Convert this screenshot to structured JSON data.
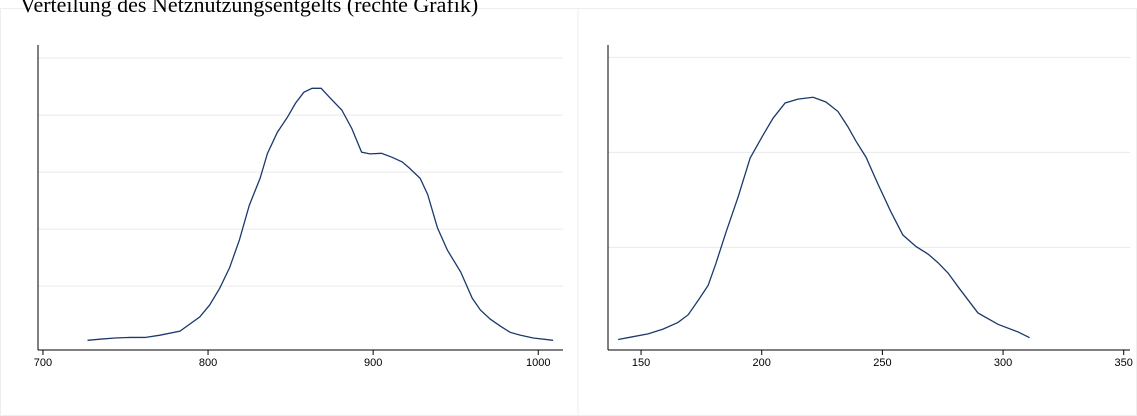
{
  "title": "Verteilung des Netznutzungsentgelts (rechte Grafik)",
  "chart_data": [
    {
      "type": "line",
      "color": "#1a3a6b",
      "grid": true,
      "xlim": [
        697,
        1015
      ],
      "xticks": [
        700,
        800,
        900,
        1000
      ],
      "ylim": [
        -0.12,
        5.23
      ],
      "yticks": [
        1,
        2,
        3,
        4,
        5
      ],
      "x": [
        727,
        734.5,
        743.6,
        752.7,
        761.8,
        770.9,
        783,
        795,
        801,
        807,
        813,
        819,
        825,
        831.5,
        836,
        842,
        848,
        853,
        858,
        863,
        868.5,
        874,
        881,
        887,
        893,
        898,
        905,
        911.5,
        917.6,
        922,
        928.5,
        933,
        939,
        945,
        953,
        960,
        965,
        971,
        977,
        983,
        989,
        997,
        1009
      ],
      "series": [
        {
          "values": [
            0.05,
            0.07,
            0.09,
            0.1,
            0.1,
            0.14,
            0.21,
            0.46,
            0.67,
            0.96,
            1.32,
            1.81,
            2.42,
            2.89,
            3.33,
            3.7,
            3.96,
            4.21,
            4.4,
            4.47,
            4.47,
            4.3,
            4.09,
            3.77,
            3.35,
            3.32,
            3.33,
            3.26,
            3.18,
            3.07,
            2.89,
            2.61,
            2.02,
            1.63,
            1.25,
            0.79,
            0.58,
            0.42,
            0.3,
            0.19,
            0.14,
            0.09,
            0.05
          ]
        }
      ]
    },
    {
      "type": "line",
      "color": "#1a3a6b",
      "grid": true,
      "xlim": [
        136.3,
        352.6
      ],
      "xticks": [
        150,
        200,
        250,
        300,
        350
      ],
      "ylim": [
        -0.08,
        3.13
      ],
      "yticks": [
        1,
        2,
        3
      ],
      "x": [
        140.5,
        146.7,
        152.9,
        159.1,
        165.3,
        169.5,
        173.6,
        177.8,
        181,
        185.2,
        190.2,
        195.2,
        200.5,
        204.7,
        209.7,
        215,
        221.3,
        226.6,
        231.6,
        235.7,
        239,
        243.2,
        248.1,
        253.6,
        258.5,
        263.9,
        268.9,
        273,
        277.2,
        282.1,
        289.6,
        297.9,
        306.2,
        311
      ],
      "series": [
        {
          "values": [
            0.03,
            0.06,
            0.09,
            0.14,
            0.21,
            0.29,
            0.44,
            0.6,
            0.83,
            1.16,
            1.53,
            1.94,
            2.18,
            2.36,
            2.52,
            2.56,
            2.58,
            2.53,
            2.43,
            2.27,
            2.12,
            1.95,
            1.67,
            1.37,
            1.13,
            1.01,
            0.93,
            0.84,
            0.73,
            0.56,
            0.31,
            0.19,
            0.11,
            0.05
          ]
        }
      ]
    }
  ]
}
